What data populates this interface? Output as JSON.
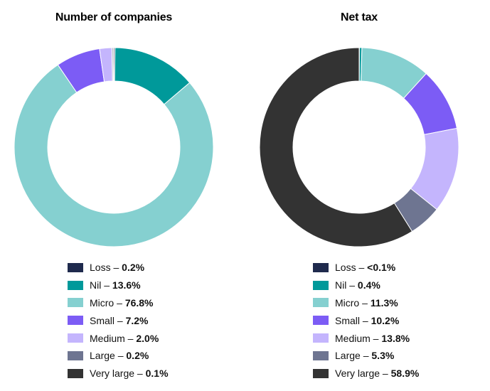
{
  "chart_data": [
    {
      "type": "pie",
      "title": "Number of companies",
      "categories": [
        "Loss",
        "Nil",
        "Micro",
        "Small",
        "Medium",
        "Large",
        "Very large"
      ],
      "values": [
        0.2,
        13.6,
        76.8,
        7.2,
        2.0,
        0.2,
        0.1
      ],
      "value_labels": [
        "0.2%",
        "13.6%",
        "76.8%",
        "7.2%",
        "2.0%",
        "0.2%",
        "0.1%"
      ],
      "colors": [
        "#1f2a4d",
        "#00999a",
        "#85d0d0",
        "#7c5cf5",
        "#c4b5fd",
        "#6e7591",
        "#333333"
      ],
      "legend_position": "bottom"
    },
    {
      "type": "pie",
      "title": "Net tax",
      "categories": [
        "Loss",
        "Nil",
        "Micro",
        "Small",
        "Medium",
        "Large",
        "Very large"
      ],
      "values": [
        0.05,
        0.4,
        11.3,
        10.2,
        13.8,
        5.3,
        58.9
      ],
      "value_labels": [
        "<0.1%",
        "0.4%",
        "11.3%",
        "10.2%",
        "13.8%",
        "5.3%",
        "58.9%"
      ],
      "colors": [
        "#1f2a4d",
        "#00999a",
        "#85d0d0",
        "#7c5cf5",
        "#c4b5fd",
        "#6e7591",
        "#333333"
      ],
      "legend_position": "bottom"
    }
  ],
  "legend_separator": " – "
}
